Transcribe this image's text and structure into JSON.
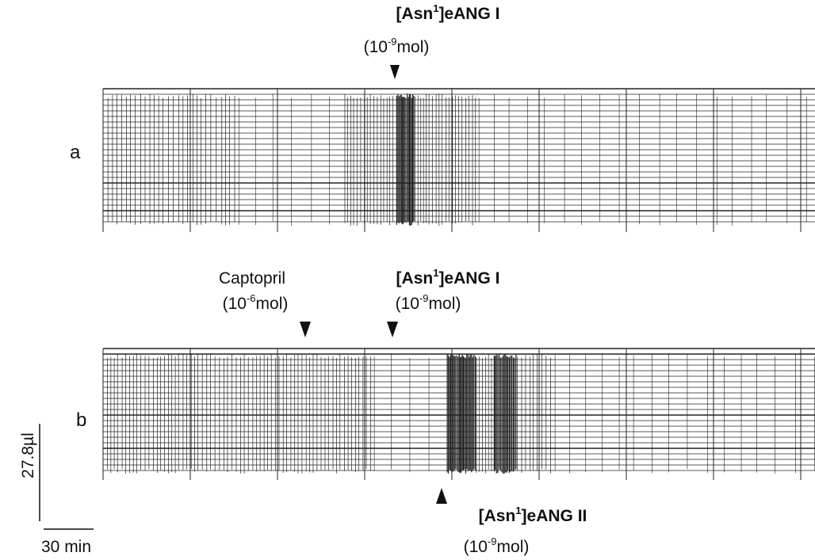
{
  "panels": [
    {
      "label": "a",
      "annotations": [
        {
          "name": {
            "pre": "[Asn",
            "sup": "1",
            "post": "]eANG I"
          },
          "dose": {
            "pre": "(10",
            "sup": "-9",
            "post": "mol)"
          }
        }
      ]
    },
    {
      "label": "b",
      "annotations": [
        {
          "name": {
            "text": "Captopril"
          },
          "dose": {
            "pre": "(10",
            "sup": "-6",
            "post": "mol)"
          }
        },
        {
          "name": {
            "pre": "[Asn",
            "sup": "1",
            "post": "]eANG I"
          },
          "dose": {
            "pre": "(10",
            "sup": "-9",
            "post": "mol)"
          }
        },
        {
          "name": {
            "pre": "[Asn",
            "sup": "1",
            "post": "]eANG II"
          },
          "dose": {
            "pre": "(10",
            "sup": "-9",
            "post": "mol)"
          }
        }
      ]
    }
  ],
  "scale": {
    "volume": "27.8µl",
    "time": "30 min"
  }
}
